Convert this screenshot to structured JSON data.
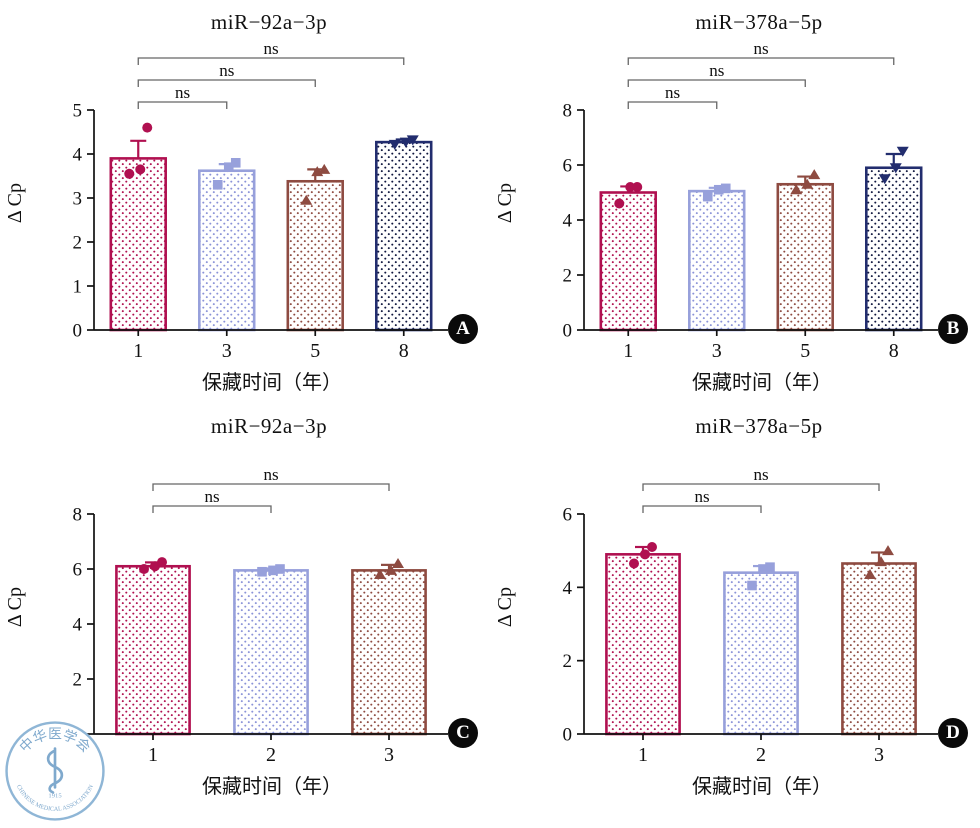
{
  "figure": {
    "background": "#ffffff",
    "xlabel": "保藏时间（年）",
    "ylabel": "Δ Cp"
  },
  "logo": {
    "cn": "中华医学会",
    "en": "CHINESE MEDICAL ASSOCIATION",
    "year": "1915",
    "color": "#7fa9cd"
  },
  "chart_data": [
    {
      "panel": "A",
      "type": "bar",
      "title": "miR−92a−3p",
      "xlabel": "保藏时间（年）",
      "ylabel": "Δ Cp",
      "categories": [
        "1",
        "3",
        "5",
        "8"
      ],
      "values": [
        3.9,
        3.62,
        3.38,
        4.27
      ],
      "errors": [
        0.4,
        0.15,
        0.27,
        0.06
      ],
      "points": [
        [
          3.55,
          3.65,
          4.6
        ],
        [
          3.3,
          3.7,
          3.8
        ],
        [
          2.95,
          3.6,
          3.65
        ],
        [
          4.22,
          4.27,
          4.32
        ]
      ],
      "markers": [
        "circle",
        "square",
        "triangle-up",
        "triangle-down"
      ],
      "colors": [
        "#b01050",
        "#97a0db",
        "#8e4b41",
        "#222d6e"
      ],
      "dot_colors": [
        "#b01050",
        "#8b93d8",
        "#8e4b41",
        "#10173f"
      ],
      "ylim": [
        0,
        5
      ],
      "yticks": [
        0,
        1,
        2,
        3,
        4,
        5
      ],
      "grid": false,
      "comparisons": [
        {
          "a": 0,
          "b": 1,
          "label": "ns"
        },
        {
          "a": 0,
          "b": 2,
          "label": "ns"
        },
        {
          "a": 0,
          "b": 3,
          "label": "ns"
        }
      ]
    },
    {
      "panel": "B",
      "type": "bar",
      "title": "miR−378a−5p",
      "xlabel": "保藏时间（年）",
      "ylabel": "Δ Cp",
      "categories": [
        "1",
        "3",
        "5",
        "8"
      ],
      "values": [
        5.0,
        5.05,
        5.3,
        5.9
      ],
      "errors": [
        0.22,
        0.12,
        0.28,
        0.5
      ],
      "points": [
        [
          4.6,
          5.2,
          5.2
        ],
        [
          4.85,
          5.1,
          5.15
        ],
        [
          5.1,
          5.3,
          5.65
        ],
        [
          5.5,
          5.9,
          6.5
        ]
      ],
      "markers": [
        "circle",
        "square",
        "triangle-up",
        "triangle-down"
      ],
      "colors": [
        "#b01050",
        "#97a0db",
        "#8e4b41",
        "#222d6e"
      ],
      "dot_colors": [
        "#b01050",
        "#8b93d8",
        "#8e4b41",
        "#10173f"
      ],
      "ylim": [
        0,
        8
      ],
      "yticks": [
        0,
        2,
        4,
        6,
        8
      ],
      "grid": false,
      "comparisons": [
        {
          "a": 0,
          "b": 1,
          "label": "ns"
        },
        {
          "a": 0,
          "b": 2,
          "label": "ns"
        },
        {
          "a": 0,
          "b": 3,
          "label": "ns"
        }
      ]
    },
    {
      "panel": "C",
      "type": "bar",
      "title": "miR−92a−3p",
      "xlabel": "保藏时间（年）",
      "ylabel": "Δ Cp",
      "categories": [
        "1",
        "2",
        "3"
      ],
      "values": [
        6.1,
        5.95,
        5.95
      ],
      "errors": [
        0.14,
        0.07,
        0.2
      ],
      "points": [
        [
          6.0,
          6.1,
          6.25
        ],
        [
          5.9,
          5.95,
          6.0
        ],
        [
          5.8,
          5.95,
          6.2
        ]
      ],
      "markers": [
        "circle",
        "square",
        "triangle-up"
      ],
      "colors": [
        "#b01050",
        "#97a0db",
        "#8e4b41"
      ],
      "dot_colors": [
        "#b01050",
        "#8b93d8",
        "#8e4b41"
      ],
      "ylim": [
        0,
        8
      ],
      "yticks": [
        0,
        2,
        4,
        6,
        8
      ],
      "grid": false,
      "comparisons": [
        {
          "a": 0,
          "b": 1,
          "label": "ns"
        },
        {
          "a": 0,
          "b": 2,
          "label": "ns"
        }
      ]
    },
    {
      "panel": "D",
      "type": "bar",
      "title": "miR−378a−5p",
      "xlabel": "保藏时间（年）",
      "ylabel": "Δ Cp",
      "categories": [
        "1",
        "2",
        "3"
      ],
      "values": [
        4.9,
        4.4,
        4.65
      ],
      "errors": [
        0.2,
        0.18,
        0.3
      ],
      "points": [
        [
          4.65,
          4.9,
          5.1
        ],
        [
          4.05,
          4.5,
          4.55
        ],
        [
          4.35,
          4.7,
          5.0
        ]
      ],
      "markers": [
        "circle",
        "square",
        "triangle-up"
      ],
      "colors": [
        "#b01050",
        "#97a0db",
        "#8e4b41"
      ],
      "dot_colors": [
        "#b01050",
        "#8b93d8",
        "#8e4b41"
      ],
      "ylim": [
        0,
        6
      ],
      "yticks": [
        0,
        2,
        4,
        6
      ],
      "grid": false,
      "comparisons": [
        {
          "a": 0,
          "b": 1,
          "label": "ns"
        },
        {
          "a": 0,
          "b": 2,
          "label": "ns"
        }
      ]
    }
  ]
}
